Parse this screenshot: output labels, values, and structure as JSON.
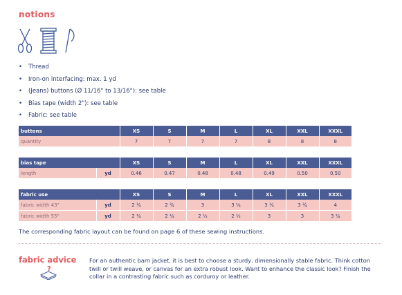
{
  "section": {
    "title": "notions"
  },
  "icons": [
    "scissors-icon",
    "thread-spool-icon",
    "needle-icon"
  ],
  "list": [
    "Thread",
    "Iron-on interfacing: max. 1 yd",
    "(Jeans) buttons (Ø 11/16\" to 13/16\"): see table",
    "Bias tape (width 2\"): see table",
    "Fabric: see table"
  ],
  "sizes": [
    "XS",
    "S",
    "M",
    "L",
    "XL",
    "XXL",
    "XXXL"
  ],
  "tables": {
    "buttons": {
      "header": "buttons",
      "rows": [
        {
          "label": "quantity",
          "unit": "",
          "values": [
            "7",
            "7",
            "7",
            "7",
            "8",
            "8",
            "8"
          ]
        }
      ]
    },
    "bias": {
      "header": "bias tape",
      "rows": [
        {
          "label": "length",
          "unit": "yd",
          "values": [
            "0.46",
            "0.47",
            "0.48",
            "0.48",
            "0.49",
            "0.50",
            "0.50"
          ]
        }
      ]
    },
    "fabric": {
      "header": "fabric use",
      "rows": [
        {
          "label": "fabric width 43\"",
          "unit": "yd",
          "values": [
            "2 ¾",
            "2 ¾",
            "3",
            "3 ¼",
            "3 ¾",
            "3 ¾",
            "4"
          ]
        },
        {
          "label": "fabric width 55\"",
          "unit": "yd",
          "values": [
            "2 ¼",
            "2 ¼",
            "2 ½",
            "2 ½",
            "3",
            "3",
            "3 ¼"
          ]
        }
      ]
    }
  },
  "note": "The corresponding fabric layout can be found on page 6 of these sewing instructions.",
  "advice": {
    "title": "fabric advice",
    "icon": "question-fabric-icon",
    "text": "For an authentic barn jacket, it is best to choose a sturdy, dimensionally stable fabric. Think cotton twill or twill weave, or canvas for an extra robust look. Want to enhance the classic look? Finish the collar in a contrasting fabric such as corduroy or leather."
  },
  "colors": {
    "accent": "#e45a5f",
    "header": "#4a5c93",
    "cell": "#f6c8c4",
    "text": "#2b3a6b"
  }
}
